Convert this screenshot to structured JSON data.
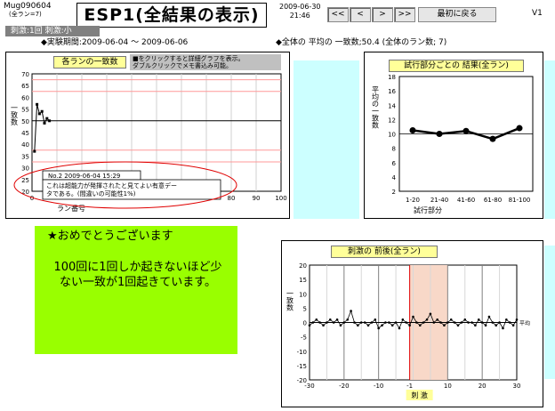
{
  "header": {
    "app_id": "Mug090604",
    "app_sub": "(全ラン=7)",
    "title": "ESP1(全結果の表示)",
    "date": "2009-06-30",
    "time": "21:46",
    "nav": [
      "<<",
      "<",
      ">",
      ">>"
    ],
    "first_button": "最初に戻る",
    "version": "V1"
  },
  "stimulus_badge": "刺激:1回 刺激:小",
  "period": "◆実験期間:2009-06-04 ～ 2009-06-06",
  "overall_avg": "◆全体の 平均の 一致数;50.4 (全体のラン数; 7)",
  "chart1": {
    "title": "各ランの一致数",
    "note_line1": "■をクリックすると詳細グラフを表示。",
    "note_line2": "ダブルクリックでメモ書込み可能。",
    "ylabel": "一致数",
    "xlabel": "ラン番号",
    "yticks": [
      "70",
      "65",
      "60",
      "55",
      "50",
      "45",
      "40",
      "35",
      "30",
      "25",
      "20"
    ],
    "xticks": [
      "0",
      "80",
      "90",
      "100"
    ],
    "tooltip_line1": "No.2 2009-06-04 15:29",
    "tooltip_line2": "これは超能力が発揮されたと見てよい有意デー",
    "tooltip_line3": "タである。(間違いの可能性1%)"
  },
  "chart1_data": {
    "type": "line",
    "x": [
      1,
      2,
      3,
      4,
      5,
      6,
      7
    ],
    "values": [
      37,
      57,
      53,
      54,
      49,
      51,
      50
    ],
    "xlim": [
      0,
      100
    ],
    "ylim": [
      20,
      70
    ],
    "reference_line": 50,
    "red_lines": [
      67.5,
      62.5,
      37.5,
      32.5
    ]
  },
  "chart2": {
    "title": "試行部分ごとの 結果(全ラン)",
    "ylabel": "平均の一致数",
    "xlabel": "試行部分",
    "yticks": [
      "18",
      "16",
      "14",
      "12",
      "10",
      "8",
      "6",
      "4",
      "2"
    ],
    "categories": [
      "1-20",
      "21-40",
      "41-60",
      "61-80",
      "81-100"
    ]
  },
  "chart2_data": {
    "type": "line",
    "categories": [
      "1-20",
      "21-40",
      "41-60",
      "61-80",
      "81-100"
    ],
    "values": [
      10.5,
      10.0,
      10.4,
      9.3,
      10.8
    ],
    "ylim": [
      2,
      18
    ],
    "reference_line": 10
  },
  "congrats": {
    "title": "★おめでとうございます",
    "line1": "100回に1回しか起きないほど少",
    "line2": "ない一致が1回起きています。"
  },
  "chart3": {
    "title": "刺激の 前後(全ラン)",
    "ylabel": "一致数",
    "xlabel": "刺 激",
    "avg_label": "平均",
    "yticks": [
      "20",
      "15",
      "10",
      "5",
      "0",
      "-5",
      "-10",
      "-15",
      "-20"
    ],
    "xticks": [
      "-30",
      "-20",
      "-10",
      "-1",
      "10",
      "20",
      "30"
    ]
  },
  "chart3_data": {
    "type": "line",
    "x_start": -30,
    "x_end": 30,
    "values": [
      -1,
      0,
      1,
      0,
      -1,
      0,
      1,
      0,
      1,
      -1,
      0,
      1,
      4,
      0,
      -1,
      0,
      0,
      -1,
      0,
      1,
      -2,
      -1,
      0,
      0,
      -1,
      0,
      -2,
      1,
      0,
      -1,
      2,
      0,
      -1,
      0,
      1,
      3,
      0,
      1,
      0,
      -1,
      0,
      1,
      0,
      -1,
      0,
      1,
      0,
      0,
      -1,
      1,
      0,
      -1,
      2,
      0,
      -1,
      0,
      -2,
      1,
      0,
      -1,
      1
    ],
    "ylim": [
      -20,
      20
    ],
    "stimulus_x": -1,
    "highlight_range": [
      -1,
      10
    ]
  },
  "colors": {
    "cyan_panel": "#ccffff",
    "congrats_bg": "#99ff00",
    "title_bg": "#ffff99",
    "reference": "#ff9999",
    "ellipse": "#e00000"
  }
}
